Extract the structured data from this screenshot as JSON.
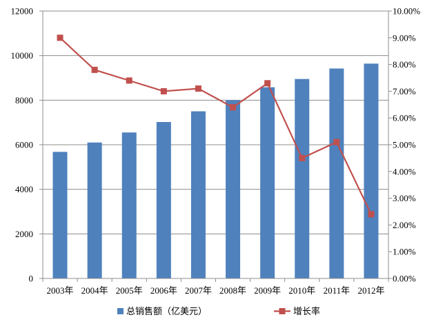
{
  "chart_data": {
    "type": "bar+line",
    "categories": [
      "2003年",
      "2004年",
      "2005年",
      "2006年",
      "2007年",
      "2008年",
      "2009年",
      "2010年",
      "2011年",
      "2012年"
    ],
    "series": [
      {
        "name": "总销售额（亿美元）",
        "type": "bar",
        "axis": "left",
        "color": "#4f81bd",
        "values": [
          5680,
          6100,
          6550,
          7020,
          7500,
          8000,
          8580,
          8950,
          9420,
          9640
        ]
      },
      {
        "name": "增长率",
        "type": "line",
        "axis": "right",
        "color": "#c0504d",
        "values": [
          0.09,
          0.078,
          0.074,
          0.07,
          0.071,
          0.064,
          0.073,
          0.045,
          0.051,
          0.024
        ]
      }
    ],
    "y_left": {
      "min": 0,
      "max": 12000,
      "step": 2000
    },
    "y_right": {
      "min": 0,
      "max": 0.1,
      "step": 0.01,
      "format": "percent_2dp"
    },
    "grid": "horizontal",
    "legend_position": "bottom"
  }
}
